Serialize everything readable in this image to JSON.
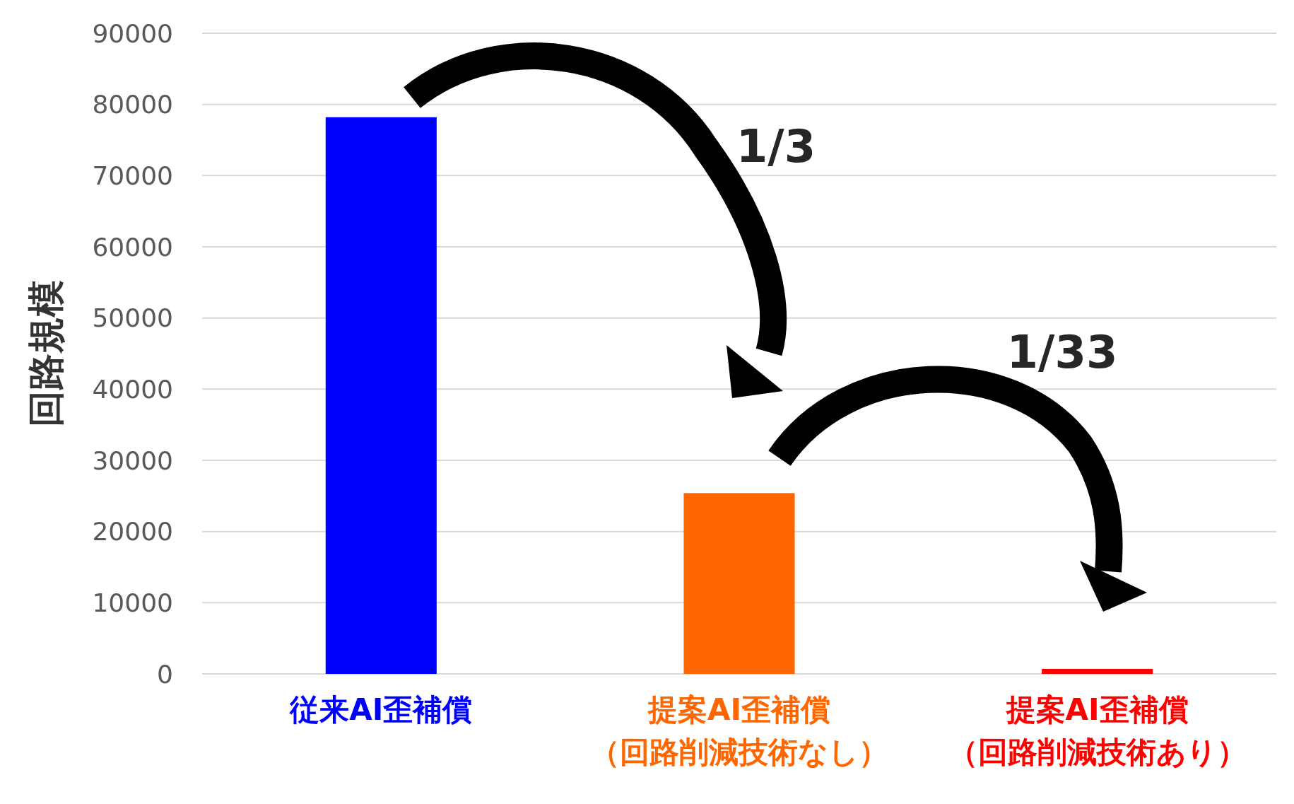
{
  "chart_data": {
    "type": "bar",
    "ylabel": "回路規模",
    "categories": [
      "従来AI歪補償",
      "提案AI歪補償（回路削減技術なし）",
      "提案AI歪補償（回路削減技術あり）"
    ],
    "values": [
      78200,
      25400,
      700
    ],
    "colors": [
      "#0000ff",
      "#ff6600",
      "#ff0000"
    ],
    "ylim": [
      0,
      90000
    ],
    "yticks": [
      0,
      10000,
      20000,
      30000,
      40000,
      50000,
      60000,
      70000,
      80000,
      90000
    ],
    "grid": "y",
    "annotations": [
      "1/3",
      "1/33"
    ]
  }
}
